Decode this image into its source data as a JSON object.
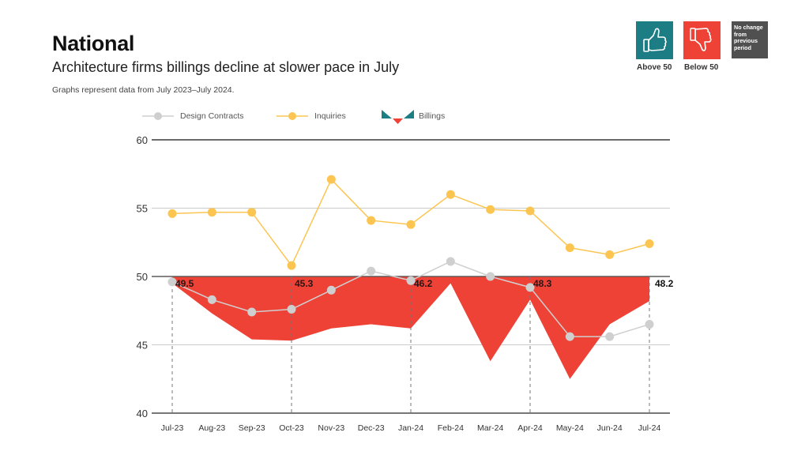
{
  "header": {
    "title": "National",
    "subtitle": "Architecture firms billings decline at slower pace in July",
    "note": "Graphs represent data from July 2023–July 2024."
  },
  "key": {
    "above": {
      "label": "Above 50",
      "icon": "thumbs-up-icon",
      "color": "#1d7d85"
    },
    "below": {
      "label": "Below 50",
      "icon": "thumbs-down-icon",
      "color": "#ee4237"
    },
    "nochange": {
      "text": "No change from previous period",
      "color": "#505050"
    }
  },
  "colors": {
    "billings": "#ee4237",
    "billings_legend_teal": "#1d7d85",
    "inquiries": "#fcc552",
    "design_contracts": "#cfcfcf"
  },
  "chart_data": {
    "type": "line",
    "title": "Architecture firms billings decline at slower pace in July",
    "xlabel": "",
    "ylabel": "",
    "ylim": [
      40,
      60
    ],
    "yticks": [
      "60",
      "55",
      "50",
      "45",
      "40"
    ],
    "grid": true,
    "legend_position": "top-left",
    "categories": [
      "Jul-23",
      "Aug-23",
      "Sep-23",
      "Oct-23",
      "Nov-23",
      "Dec-23",
      "Jan-24",
      "Feb-24",
      "Mar-24",
      "Apr-24",
      "May-24",
      "Jun-24",
      "Jul-24"
    ],
    "series": [
      {
        "name": "Design Contracts",
        "type": "line",
        "values": [
          49.6,
          48.3,
          47.4,
          47.6,
          49.0,
          50.4,
          49.7,
          51.1,
          50.0,
          49.2,
          45.6,
          45.6,
          46.5
        ]
      },
      {
        "name": "Inquiries",
        "type": "line",
        "values": [
          54.6,
          54.7,
          54.7,
          50.8,
          57.1,
          54.1,
          53.8,
          56.0,
          54.9,
          54.8,
          52.1,
          51.6,
          52.4
        ]
      },
      {
        "name": "Billings",
        "type": "area-from-50",
        "values": [
          49.5,
          47.3,
          45.4,
          45.3,
          46.2,
          46.5,
          46.2,
          49.5,
          43.8,
          48.3,
          42.5,
          46.5,
          48.2
        ]
      }
    ],
    "annotations": [
      {
        "category": "Jul-23",
        "text": "49.5"
      },
      {
        "category": "Oct-23",
        "text": "45.3"
      },
      {
        "category": "Jan-24",
        "text": "46.2"
      },
      {
        "category": "Apr-24",
        "text": "48.3"
      },
      {
        "category": "Jul-24",
        "text": "48.2"
      }
    ]
  }
}
